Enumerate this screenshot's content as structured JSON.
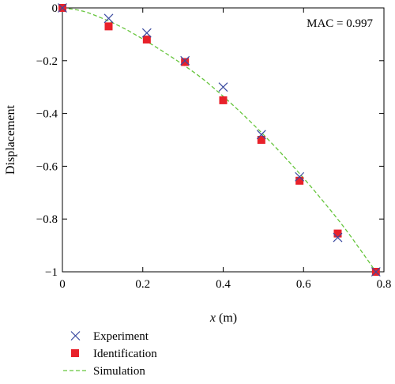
{
  "chart_data": {
    "type": "scatter",
    "xlabel_var": "x",
    "xlabel_unit": " (m)",
    "ylabel": "Displacement",
    "xlim": [
      0,
      0.8
    ],
    "ylim": [
      -1,
      0
    ],
    "xticks": [
      0,
      0.2,
      0.4,
      0.6,
      0.8
    ],
    "xtick_labels": [
      "0",
      "0.2",
      "0.4",
      "0.6",
      "0.8"
    ],
    "yticks": [
      0,
      -0.2,
      -0.4,
      -0.6,
      -0.8,
      -1
    ],
    "ytick_labels": [
      "0",
      "−0.2",
      "−0.4",
      "−0.6",
      "−0.8",
      "−1"
    ],
    "grid": false,
    "legend_position": "below-left",
    "annotation": "MAC = 0.997",
    "series": [
      {
        "name": "Experiment",
        "marker": "x",
        "color": "#3a4aa0",
        "x": [
          0.0,
          0.115,
          0.21,
          0.305,
          0.4,
          0.495,
          0.59,
          0.685,
          0.78
        ],
        "y": [
          0.0,
          -0.04,
          -0.095,
          -0.2,
          -0.3,
          -0.48,
          -0.64,
          -0.87,
          -1.0
        ]
      },
      {
        "name": "Identification",
        "marker": "square",
        "color": "#e8212a",
        "x": [
          0.0,
          0.115,
          0.21,
          0.305,
          0.4,
          0.495,
          0.59,
          0.685,
          0.78
        ],
        "y": [
          0.0,
          -0.07,
          -0.12,
          -0.205,
          -0.35,
          -0.5,
          -0.655,
          -0.855,
          -1.0
        ]
      },
      {
        "name": "Simulation",
        "line": "dashed",
        "color": "#66c53c",
        "x": [
          0.0,
          0.05,
          0.1,
          0.15,
          0.2,
          0.25,
          0.3,
          0.35,
          0.4,
          0.45,
          0.5,
          0.55,
          0.6,
          0.65,
          0.7,
          0.75,
          0.78
        ],
        "y": [
          0.0,
          -0.012,
          -0.04,
          -0.075,
          -0.118,
          -0.165,
          -0.215,
          -0.27,
          -0.335,
          -0.405,
          -0.48,
          -0.56,
          -0.645,
          -0.735,
          -0.83,
          -0.935,
          -1.0
        ]
      }
    ]
  }
}
